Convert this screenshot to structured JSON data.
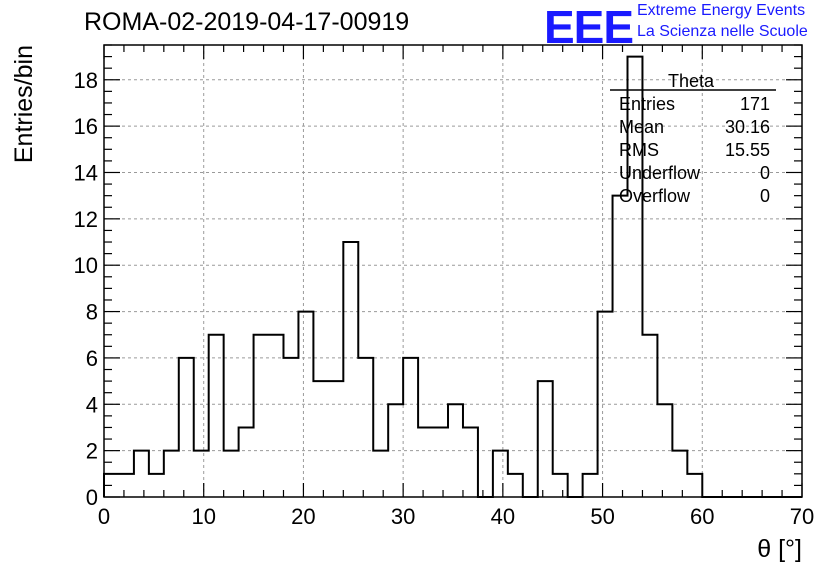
{
  "header": {
    "title": "ROMA-02-2019-04-17-00919",
    "logo_text": "EEE",
    "logo_line1": "Extreme Energy Events",
    "logo_line2": "La Scienza nelle Scuole"
  },
  "stats_box": {
    "title": "Theta",
    "rows": [
      {
        "label": "Entries",
        "value": "171"
      },
      {
        "label": "Mean",
        "value": "30.16"
      },
      {
        "label": "RMS",
        "value": "15.55"
      },
      {
        "label": "Underflow",
        "value": "0"
      },
      {
        "label": "Overflow",
        "value": "0"
      }
    ]
  },
  "chart_data": {
    "type": "histogram",
    "title": "ROMA-02-2019-04-17-00919",
    "xlabel": "θ [°]",
    "ylabel": "Entries/bin",
    "xlim": [
      0,
      70
    ],
    "ylim": [
      0,
      19.5
    ],
    "grid": true,
    "bin_width": 1.5,
    "x_ticks": [
      0,
      10,
      20,
      30,
      40,
      50,
      60,
      70
    ],
    "y_ticks": [
      0,
      2,
      4,
      6,
      8,
      10,
      12,
      14,
      16,
      18
    ],
    "values": [
      1,
      1,
      2,
      1,
      2,
      6,
      2,
      7,
      2,
      3,
      7,
      7,
      6,
      8,
      5,
      5,
      11,
      6,
      2,
      4,
      6,
      3,
      3,
      4,
      3,
      0,
      2,
      1,
      0,
      5,
      1,
      0,
      1,
      8,
      13,
      19,
      7,
      4,
      2,
      1,
      0,
      0,
      0,
      0,
      0,
      0,
      0
    ],
    "line_color": "#000000"
  }
}
